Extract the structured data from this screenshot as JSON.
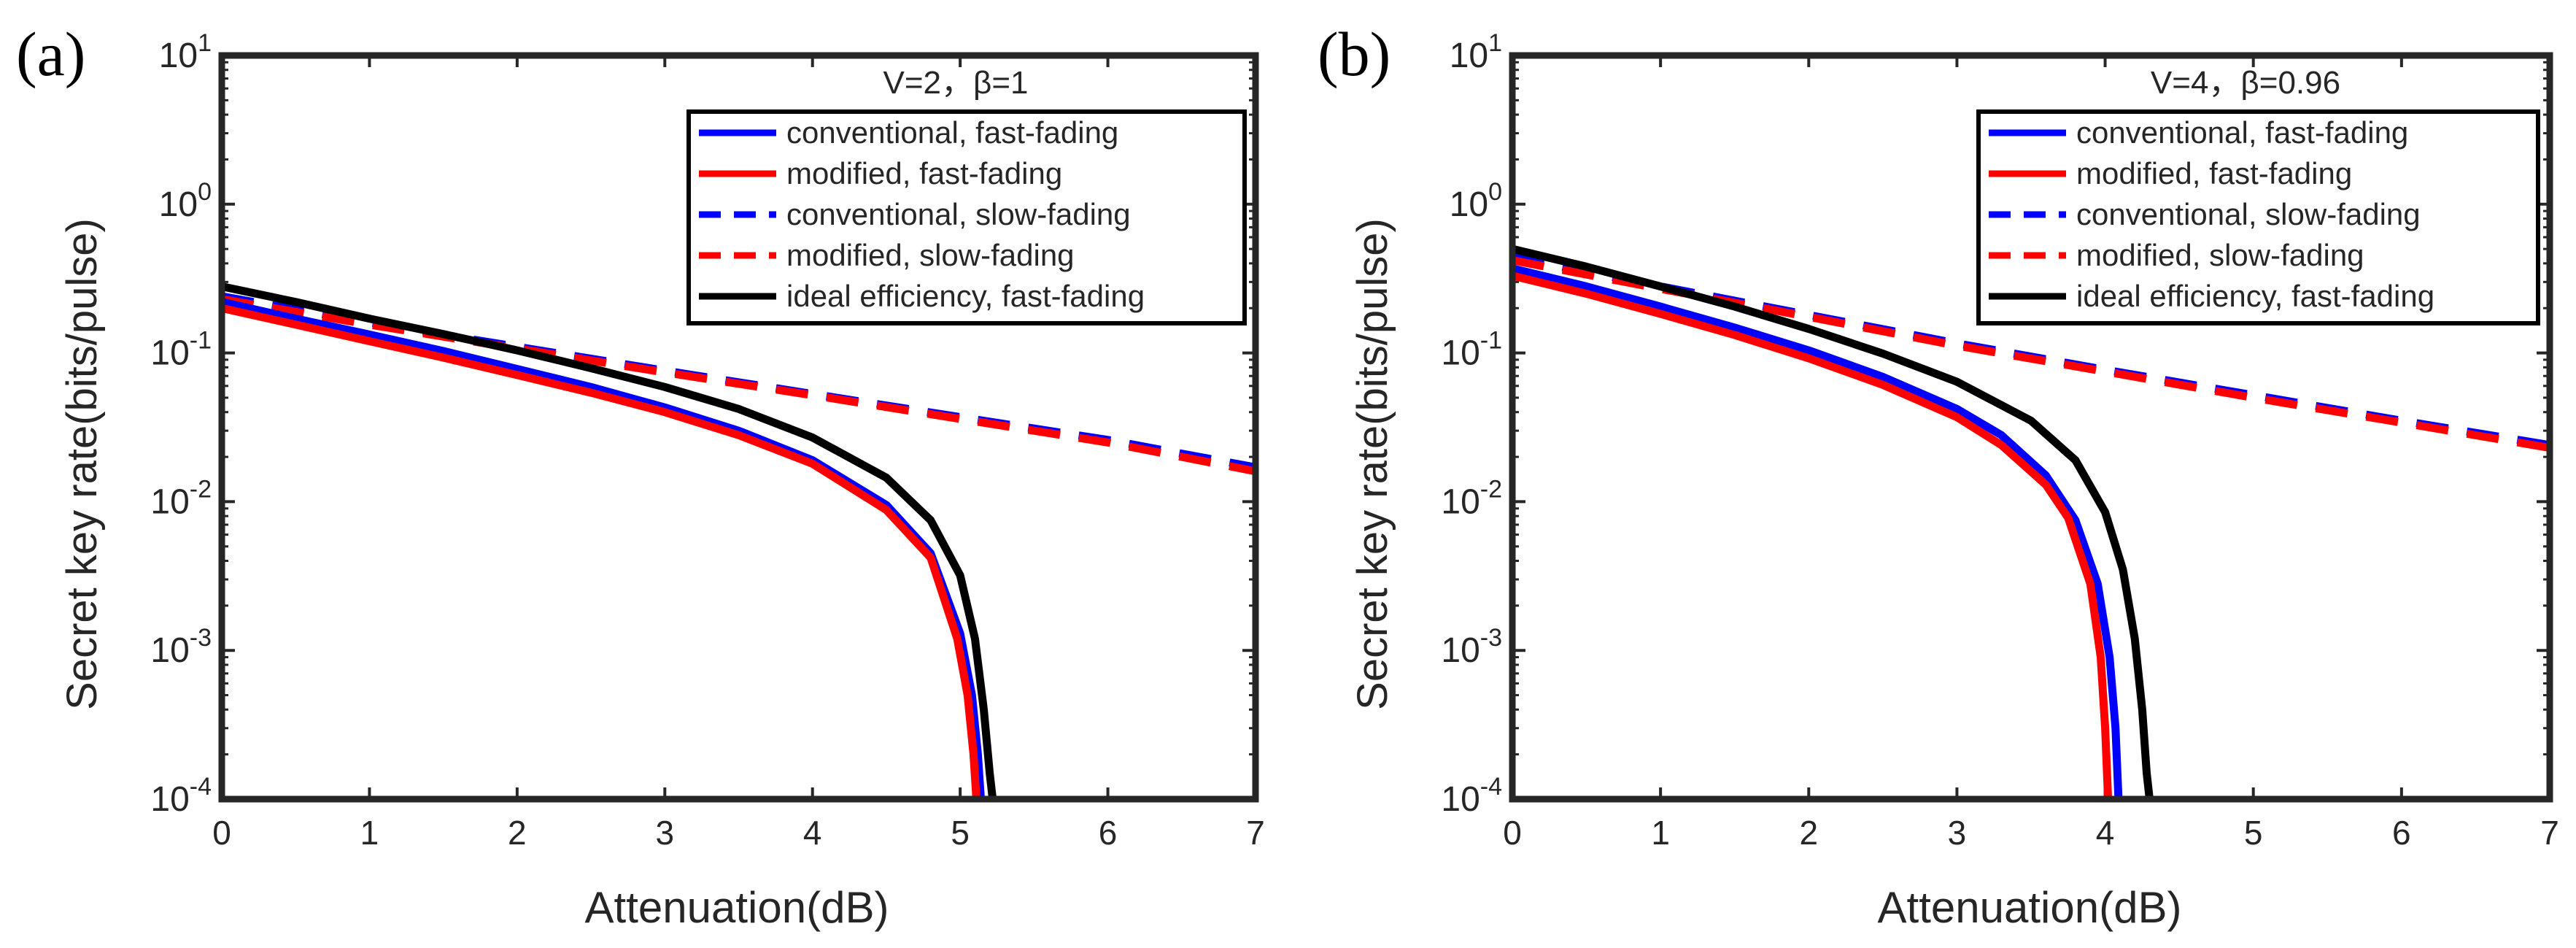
{
  "chart_data": [
    {
      "type": "line",
      "panel_label": "(a)",
      "annotation": "V=2，β=1",
      "xlabel": "Attenuation(dB)",
      "ylabel": "Secret key rate(bits/pulse)",
      "xlim": [
        0,
        7
      ],
      "ylim": [
        0.0001,
        10
      ],
      "yscale": "log",
      "xticks": [
        "0",
        "1",
        "2",
        "3",
        "4",
        "5",
        "6",
        "7"
      ],
      "yticks": [
        {
          "base": "10",
          "exp": "-4"
        },
        {
          "base": "10",
          "exp": "-3"
        },
        {
          "base": "10",
          "exp": "-2"
        },
        {
          "base": "10",
          "exp": "-1"
        },
        {
          "base": "10",
          "exp": "0"
        },
        {
          "base": "10",
          "exp": "1"
        }
      ],
      "legend_position": "top-right",
      "series": [
        {
          "name": "conventional, fast-fading",
          "color": "#0000ff",
          "style": "solid",
          "x": [
            0,
            0.5,
            1,
            1.5,
            2,
            2.5,
            3,
            3.5,
            4,
            4.5,
            4.8,
            5.0,
            5.08,
            5.12,
            5.14
          ],
          "y": [
            0.22,
            0.17,
            0.133,
            0.103,
            0.078,
            0.059,
            0.043,
            0.03,
            0.019,
            0.0095,
            0.0045,
            0.0013,
            0.0005,
            0.0002,
            0.0001
          ]
        },
        {
          "name": "modified, fast-fading",
          "color": "#ff0000",
          "style": "solid",
          "x": [
            0,
            0.5,
            1,
            1.5,
            2,
            2.5,
            3,
            3.5,
            4,
            4.5,
            4.8,
            4.98,
            5.05,
            5.09,
            5.11
          ],
          "y": [
            0.2,
            0.155,
            0.12,
            0.093,
            0.071,
            0.054,
            0.04,
            0.028,
            0.018,
            0.0088,
            0.0042,
            0.0012,
            0.0005,
            0.0002,
            0.0001
          ]
        },
        {
          "name": "conventional, slow-fading",
          "color": "#0000ff",
          "style": "dashed",
          "x": [
            0,
            1,
            2,
            3,
            4,
            5,
            6,
            7
          ],
          "y": [
            0.24,
            0.16,
            0.11,
            0.076,
            0.053,
            0.037,
            0.026,
            0.017
          ]
        },
        {
          "name": "modified, slow-fading",
          "color": "#ff0000",
          "style": "dashed",
          "x": [
            0,
            1,
            2,
            3,
            4,
            5,
            6,
            7
          ],
          "y": [
            0.23,
            0.155,
            0.107,
            0.074,
            0.052,
            0.036,
            0.025,
            0.016
          ]
        },
        {
          "name": "ideal efficiency, fast-fading",
          "color": "#000000",
          "style": "solid",
          "x": [
            0,
            0.5,
            1,
            1.5,
            2,
            2.5,
            3,
            3.5,
            4,
            4.5,
            4.8,
            5.0,
            5.1,
            5.16,
            5.2,
            5.22
          ],
          "y": [
            0.28,
            0.22,
            0.17,
            0.134,
            0.104,
            0.079,
            0.059,
            0.042,
            0.027,
            0.0145,
            0.0075,
            0.0032,
            0.0012,
            0.0004,
            0.00015,
            0.0001
          ]
        }
      ]
    },
    {
      "type": "line",
      "panel_label": "(b)",
      "annotation": "V=4，β=0.96",
      "xlabel": "Attenuation(dB)",
      "ylabel": "Secret key rate(bits/pulse)",
      "xlim": [
        0,
        7
      ],
      "ylim": [
        0.0001,
        10
      ],
      "yscale": "log",
      "xticks": [
        "0",
        "1",
        "2",
        "3",
        "4",
        "5",
        "6",
        "7"
      ],
      "yticks": [
        {
          "base": "10",
          "exp": "-4"
        },
        {
          "base": "10",
          "exp": "-3"
        },
        {
          "base": "10",
          "exp": "-2"
        },
        {
          "base": "10",
          "exp": "-1"
        },
        {
          "base": "10",
          "exp": "0"
        },
        {
          "base": "10",
          "exp": "1"
        }
      ],
      "legend_position": "top-right",
      "series": [
        {
          "name": "conventional, fast-fading",
          "color": "#0000ff",
          "style": "solid",
          "x": [
            0,
            0.5,
            1,
            1.5,
            2,
            2.5,
            3,
            3.3,
            3.6,
            3.8,
            3.95,
            4.03,
            4.07,
            4.09
          ],
          "y": [
            0.37,
            0.28,
            0.205,
            0.148,
            0.104,
            0.069,
            0.042,
            0.028,
            0.015,
            0.0075,
            0.0028,
            0.0009,
            0.0003,
            0.0001
          ]
        },
        {
          "name": "modified, fast-fading",
          "color": "#ff0000",
          "style": "solid",
          "x": [
            0,
            0.5,
            1,
            1.5,
            2,
            2.5,
            3,
            3.3,
            3.6,
            3.75,
            3.9,
            3.97,
            4.0,
            4.02
          ],
          "y": [
            0.33,
            0.25,
            0.183,
            0.132,
            0.092,
            0.061,
            0.037,
            0.024,
            0.013,
            0.0078,
            0.0028,
            0.0009,
            0.0003,
            0.0001
          ]
        },
        {
          "name": "conventional, slow-fading",
          "color": "#0000ff",
          "style": "dashed",
          "x": [
            0,
            1,
            2,
            3,
            4,
            5,
            6,
            7
          ],
          "y": [
            0.44,
            0.28,
            0.18,
            0.116,
            0.077,
            0.052,
            0.035,
            0.024
          ]
        },
        {
          "name": "modified, slow-fading",
          "color": "#ff0000",
          "style": "dashed",
          "x": [
            0,
            1,
            2,
            3,
            4,
            5,
            6,
            7
          ],
          "y": [
            0.42,
            0.27,
            0.175,
            0.112,
            0.075,
            0.05,
            0.034,
            0.023
          ]
        },
        {
          "name": "ideal efficiency, fast-fading",
          "color": "#000000",
          "style": "solid",
          "x": [
            0,
            0.5,
            1,
            1.5,
            2,
            2.5,
            3,
            3.5,
            3.8,
            4.0,
            4.12,
            4.2,
            4.25,
            4.28,
            4.3
          ],
          "y": [
            0.5,
            0.38,
            0.28,
            0.205,
            0.145,
            0.099,
            0.064,
            0.035,
            0.019,
            0.0085,
            0.0035,
            0.0012,
            0.0004,
            0.00015,
            0.0001
          ]
        }
      ]
    }
  ]
}
